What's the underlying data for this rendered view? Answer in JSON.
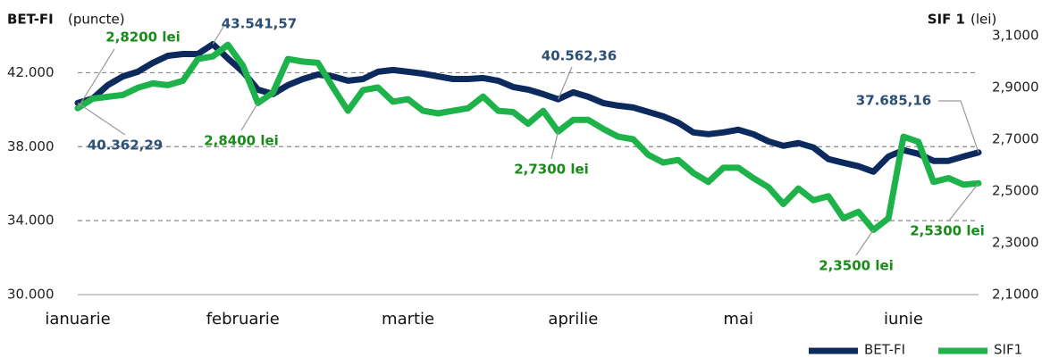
{
  "chart_data": {
    "type": "line",
    "y_title": "BET-FI",
    "y_unit": "(puncte)",
    "y2_title": "SIF 1",
    "y2_unit": "(lei)",
    "categories": [
      "ianuarie",
      null,
      null,
      null,
      null,
      null,
      null,
      null,
      null,
      null,
      null,
      "februarie",
      null,
      null,
      null,
      null,
      null,
      null,
      null,
      null,
      null,
      null,
      "martie",
      null,
      null,
      null,
      null,
      null,
      null,
      null,
      null,
      null,
      null,
      "aprilie",
      null,
      null,
      null,
      null,
      null,
      null,
      null,
      null,
      null,
      null,
      "mai",
      null,
      null,
      null,
      null,
      null,
      null,
      null,
      null,
      null,
      null,
      "iunie",
      null,
      null,
      null,
      null,
      null
    ],
    "ylim": [
      30000,
      44000
    ],
    "yticks": [
      {
        "value": 30000,
        "label": "30.000"
      },
      {
        "value": 34000,
        "label": "34.000"
      },
      {
        "value": 38000,
        "label": "38.000"
      },
      {
        "value": 42000,
        "label": "42.000"
      }
    ],
    "y2lim": [
      2.1,
      3.1
    ],
    "y2ticks": [
      {
        "value": 2.1,
        "label": "2,1000"
      },
      {
        "value": 2.3,
        "label": "2,3000"
      },
      {
        "value": 2.5,
        "label": "2,5000"
      },
      {
        "value": 2.7,
        "label": "2,7000"
      },
      {
        "value": 2.9,
        "label": "2,9000"
      },
      {
        "value": 3.1,
        "label": "3,1000"
      }
    ],
    "grid": true,
    "legend": "bottom-right",
    "series": [
      {
        "name": "BET-FI",
        "color": "#0d2a5e",
        "values": [
          40362.29,
          40600,
          41325,
          41800,
          42050,
          42530,
          42915,
          43010,
          43010,
          43541.57,
          42770,
          42050,
          41085,
          40845,
          41325,
          41660,
          41900,
          41800,
          41565,
          41660,
          42050,
          42145,
          42050,
          41950,
          41800,
          41660,
          41660,
          41710,
          41565,
          41230,
          41085,
          40845,
          40562.36,
          40940,
          40700,
          40360,
          40215,
          40120,
          39880,
          39640,
          39300,
          38770,
          38675,
          38770,
          38915,
          38675,
          38290,
          38050,
          38195,
          37955,
          37330,
          37130,
          36940,
          36650,
          37470,
          37810,
          37615,
          37230,
          37230,
          37470,
          37685.16
        ],
        "value_labels": [
          "40.362,29",
          null,
          null,
          null,
          null,
          null,
          null,
          null,
          null,
          "43.541,57",
          null,
          null,
          null,
          null,
          null,
          null,
          null,
          null,
          null,
          null,
          null,
          null,
          null,
          null,
          null,
          null,
          null,
          null,
          null,
          null,
          null,
          null,
          "40.562,36",
          null,
          null,
          null,
          null,
          null,
          null,
          null,
          null,
          null,
          null,
          null,
          null,
          null,
          null,
          null,
          null,
          null,
          null,
          null,
          null,
          null,
          null,
          null,
          null,
          null,
          null,
          null,
          "37.685,16"
        ]
      },
      {
        "name": "SIF1",
        "color": "#1db34a",
        "axis": "y2",
        "values": [
          2.82,
          2.857,
          2.864,
          2.871,
          2.899,
          2.916,
          2.909,
          2.926,
          3.01,
          3.02,
          3.065,
          2.985,
          2.84,
          2.88,
          3.01,
          3.0,
          2.995,
          2.9,
          2.81,
          2.89,
          2.9,
          2.845,
          2.855,
          2.81,
          2.8,
          2.81,
          2.82,
          2.865,
          2.81,
          2.805,
          2.76,
          2.81,
          2.73,
          2.775,
          2.775,
          2.74,
          2.71,
          2.7,
          2.64,
          2.61,
          2.62,
          2.57,
          2.535,
          2.59,
          2.59,
          2.55,
          2.515,
          2.45,
          2.51,
          2.465,
          2.48,
          2.395,
          2.42,
          2.35,
          2.395,
          2.71,
          2.69,
          2.535,
          2.55,
          2.525,
          2.53
        ],
        "value_labels": [
          "2,8200 lei",
          null,
          null,
          null,
          null,
          null,
          null,
          null,
          null,
          null,
          null,
          null,
          "2,8400 lei",
          null,
          null,
          null,
          null,
          null,
          null,
          null,
          null,
          null,
          null,
          null,
          null,
          null,
          null,
          null,
          null,
          null,
          null,
          null,
          "2,7300 lei",
          null,
          null,
          null,
          null,
          null,
          null,
          null,
          null,
          null,
          null,
          null,
          null,
          null,
          null,
          null,
          null,
          null,
          null,
          null,
          null,
          "2,3500 lei",
          null,
          null,
          null,
          null,
          null,
          null,
          "2,5300 lei"
        ]
      }
    ]
  }
}
